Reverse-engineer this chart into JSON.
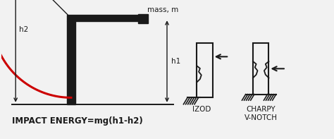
{
  "bg_color": "#f2f2f2",
  "line_color": "#1a1a1a",
  "red_arc_color": "#cc0000",
  "title_text": "IMPACT ENERGY=mg(h1-h2)",
  "mass_label": "mass, m",
  "h1_label": "h1",
  "h2_label": "h2",
  "izod_label": "IZOD",
  "charpy_label": "CHARPY\nV-NOTCH",
  "font_size_label": 7.5,
  "font_size_title": 8.5,
  "xlim": [
    0,
    10
  ],
  "ylim": [
    0,
    4.2
  ],
  "figw": 4.74,
  "figh": 1.97,
  "dpi": 100
}
